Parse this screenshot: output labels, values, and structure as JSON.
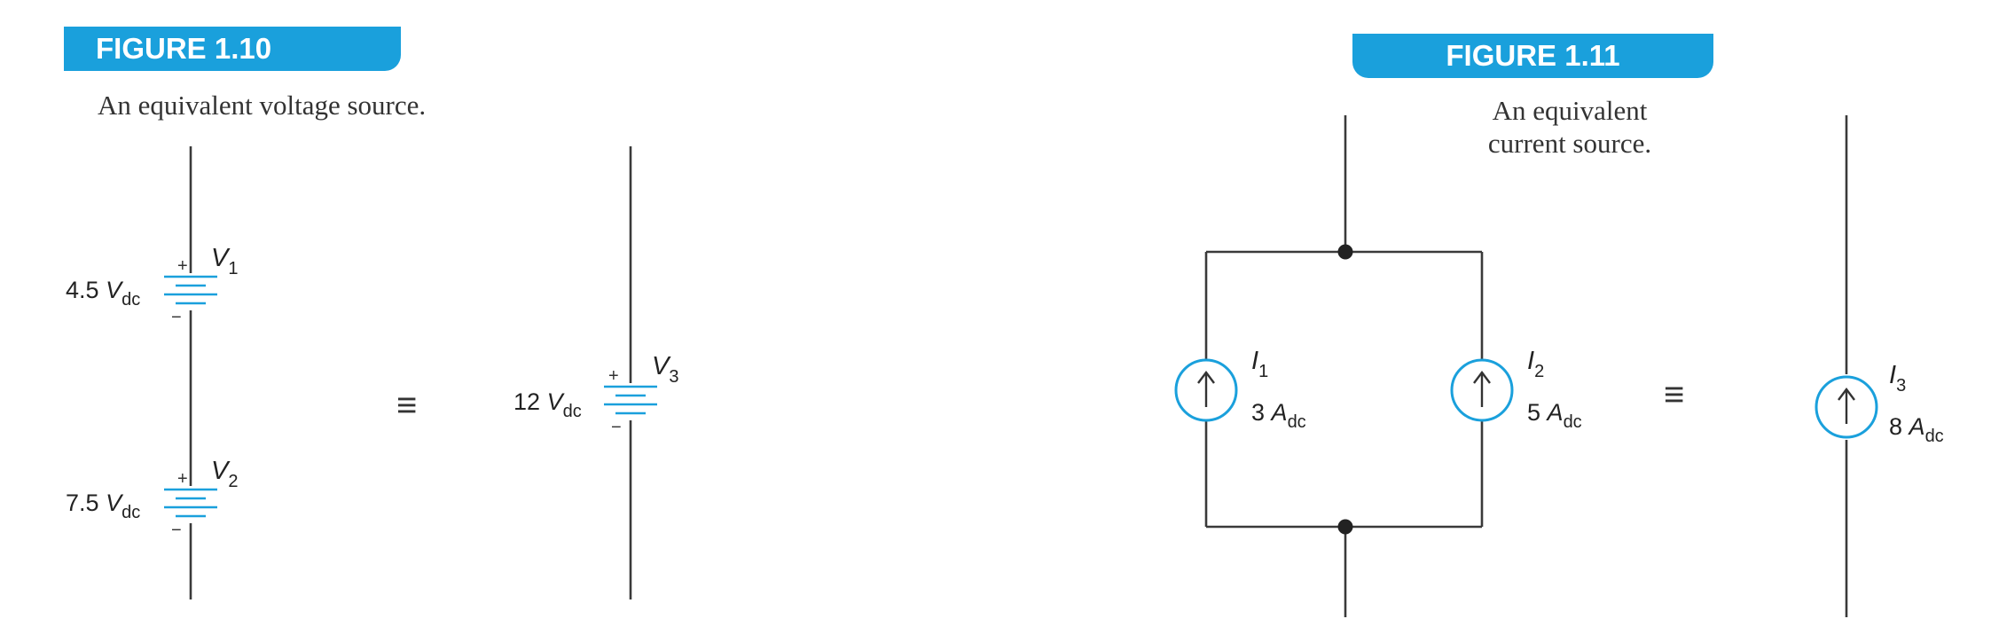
{
  "figure_110": {
    "label": "FIGURE 1.10",
    "caption": "An equivalent voltage source.",
    "sources": [
      {
        "symbol": "V",
        "subscript": "1",
        "value": "4.5",
        "unit": "V",
        "unit_sub": "dc"
      },
      {
        "symbol": "V",
        "subscript": "2",
        "value": "7.5",
        "unit": "V",
        "unit_sub": "dc"
      },
      {
        "symbol": "V",
        "subscript": "3",
        "value": "12",
        "unit": "V",
        "unit_sub": "dc"
      }
    ],
    "plus": "+",
    "minus": "−",
    "equivalence": "≡"
  },
  "figure_111": {
    "label": "FIGURE 1.11",
    "caption_line1": "An equivalent",
    "caption_line2": "current source.",
    "sources": [
      {
        "symbol": "I",
        "subscript": "1",
        "value": "3",
        "unit": "A",
        "unit_sub": "dc"
      },
      {
        "symbol": "I",
        "subscript": "2",
        "value": "5",
        "unit": "A",
        "unit_sub": "dc"
      },
      {
        "symbol": "I",
        "subscript": "3",
        "value": "8",
        "unit": "A",
        "unit_sub": "dc"
      }
    ],
    "equivalence": "≡"
  },
  "colors": {
    "accent": "#1aa0dc",
    "wire": "#3a3a3a"
  }
}
